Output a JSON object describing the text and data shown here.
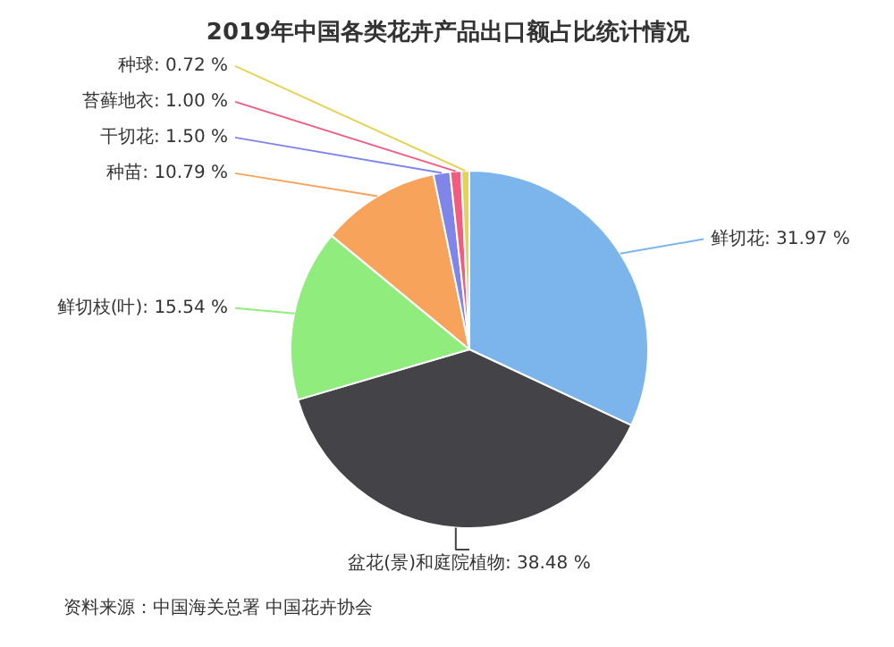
{
  "chart_data": {
    "type": "pie",
    "title": "2019年中国各类花卉产品出口额占比统计情况",
    "categories": [
      "鲜切花",
      "盆花(景)和庭院植物",
      "鲜切枝(叶)",
      "种苗",
      "干切花",
      "苔藓地衣",
      "种球"
    ],
    "values": [
      31.97,
      38.48,
      15.54,
      10.79,
      1.5,
      1.0,
      0.72
    ],
    "value_labels": [
      "31.97 %",
      "38.48 %",
      "15.54 %",
      "10.79 %",
      "1.50 %",
      "1.00 %",
      "0.72 %"
    ],
    "colors": [
      "#7cb5ec",
      "#434348",
      "#90ed7d",
      "#f7a35c",
      "#8085e9",
      "#f15c80",
      "#e4d354"
    ],
    "annotations": [
      "资料来源：中国海关总署 中国花卉协会"
    ]
  }
}
